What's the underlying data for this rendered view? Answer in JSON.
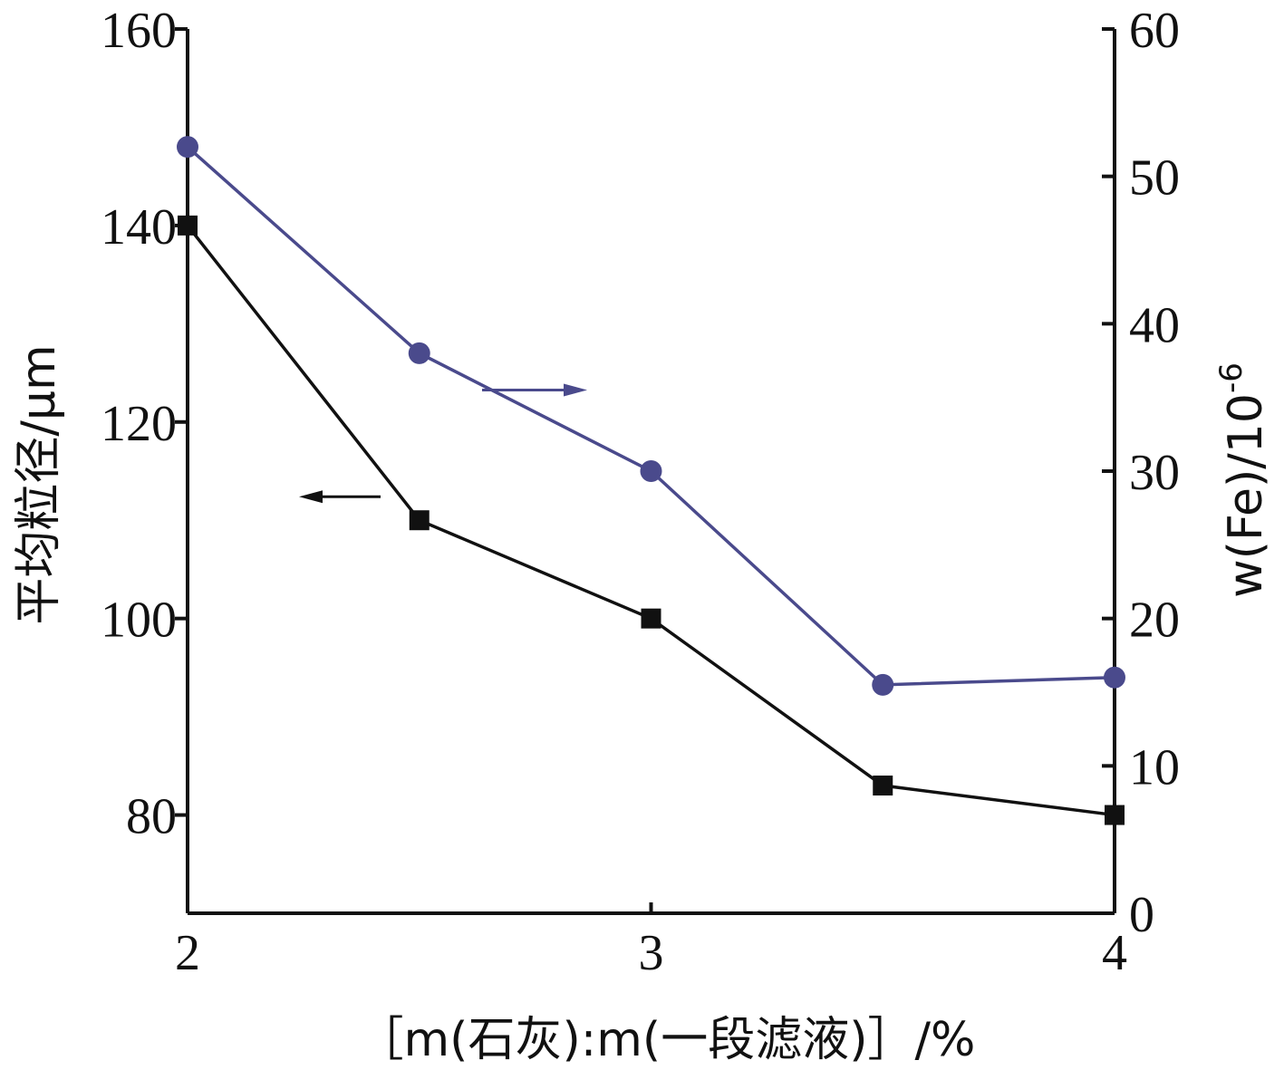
{
  "chart_data": {
    "type": "line",
    "x": [
      2,
      2.5,
      3,
      3.5,
      4
    ],
    "xlim": [
      2,
      4
    ],
    "xticks": [
      "2",
      "3",
      "4"
    ],
    "xlabel": "［m(石灰):m(一段滤液)］/%",
    "y_left": {
      "label": "平均粒径/μm",
      "lim": [
        70,
        160
      ],
      "ticks": [
        "80",
        "100",
        "120",
        "140",
        "160"
      ]
    },
    "y_right": {
      "label": "w(Fe)/10",
      "label_sup": "-6",
      "lim": [
        0,
        60
      ],
      "ticks": [
        "0",
        "10",
        "20",
        "30",
        "40",
        "50",
        "60"
      ]
    },
    "series": [
      {
        "axis": "left",
        "marker": "square",
        "color": "#111111",
        "values": [
          140,
          110,
          100,
          83,
          80
        ]
      },
      {
        "axis": "right",
        "marker": "circle",
        "color": "#4a4a8c",
        "values": [
          52,
          38,
          30,
          15.5,
          16
        ]
      }
    ],
    "annotations": [
      {
        "type": "arrow",
        "direction": "left",
        "series_index": 0
      },
      {
        "type": "arrow",
        "direction": "right",
        "series_index": 1
      }
    ],
    "grid": false
  }
}
